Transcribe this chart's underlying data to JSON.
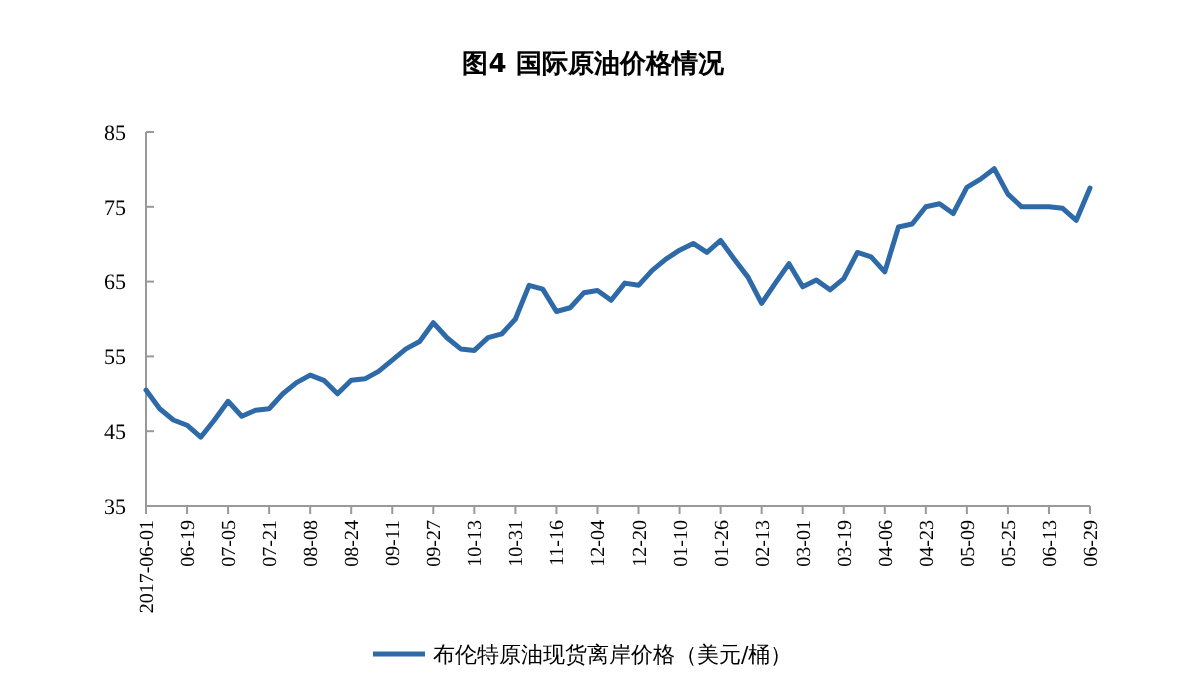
{
  "chart_data": {
    "type": "line",
    "title": "图4 国际原油价格情况",
    "categories": [
      "2017-06-01",
      null,
      null,
      "06-19",
      null,
      null,
      "07-05",
      null,
      null,
      "07-21",
      null,
      null,
      "08-08",
      null,
      null,
      "08-24",
      null,
      null,
      "09-11",
      null,
      null,
      "09-27",
      null,
      null,
      "10-13",
      null,
      null,
      "10-31",
      null,
      null,
      "11-16",
      null,
      null,
      "12-04",
      null,
      null,
      "12-20",
      null,
      null,
      "01-10",
      null,
      null,
      "01-26",
      null,
      null,
      "02-13",
      null,
      null,
      "03-01",
      null,
      null,
      "03-19",
      null,
      null,
      "04-06",
      null,
      null,
      "04-23",
      null,
      null,
      "05-09",
      null,
      null,
      "05-25",
      null,
      null,
      "06-13",
      null,
      null,
      "06-29"
    ],
    "series": [
      {
        "name": "布伦特原油现货离岸价格（美元/桶）",
        "color": "#2e6aa8",
        "values": [
          50.5,
          48.0,
          46.5,
          45.8,
          44.2,
          46.5,
          49.0,
          47.0,
          47.8,
          48.0,
          50.0,
          51.5,
          52.5,
          51.8,
          50.0,
          51.8,
          52.0,
          53.0,
          54.5,
          56.0,
          57.0,
          59.5,
          57.5,
          56.0,
          55.8,
          57.5,
          58.0,
          60.0,
          64.5,
          64.0,
          61.0,
          61.5,
          63.5,
          63.8,
          62.5,
          64.8,
          64.5,
          66.5,
          68.0,
          69.2,
          70.1,
          68.9,
          70.5,
          68.0,
          65.6,
          62.1,
          64.8,
          67.4,
          64.3,
          65.2,
          63.9,
          65.4,
          68.9,
          68.3,
          66.3,
          72.3,
          72.7,
          75.0,
          75.4,
          74.1,
          77.6,
          78.7,
          80.1,
          76.7,
          75.0,
          75.0,
          75.0,
          74.8,
          73.2,
          77.5
        ]
      }
    ],
    "ylim": [
      35,
      85
    ],
    "yticks": [
      35,
      45,
      55,
      65,
      75,
      85
    ],
    "grid": false,
    "legend": "bottom",
    "marker": "none",
    "line_style": "solid"
  }
}
